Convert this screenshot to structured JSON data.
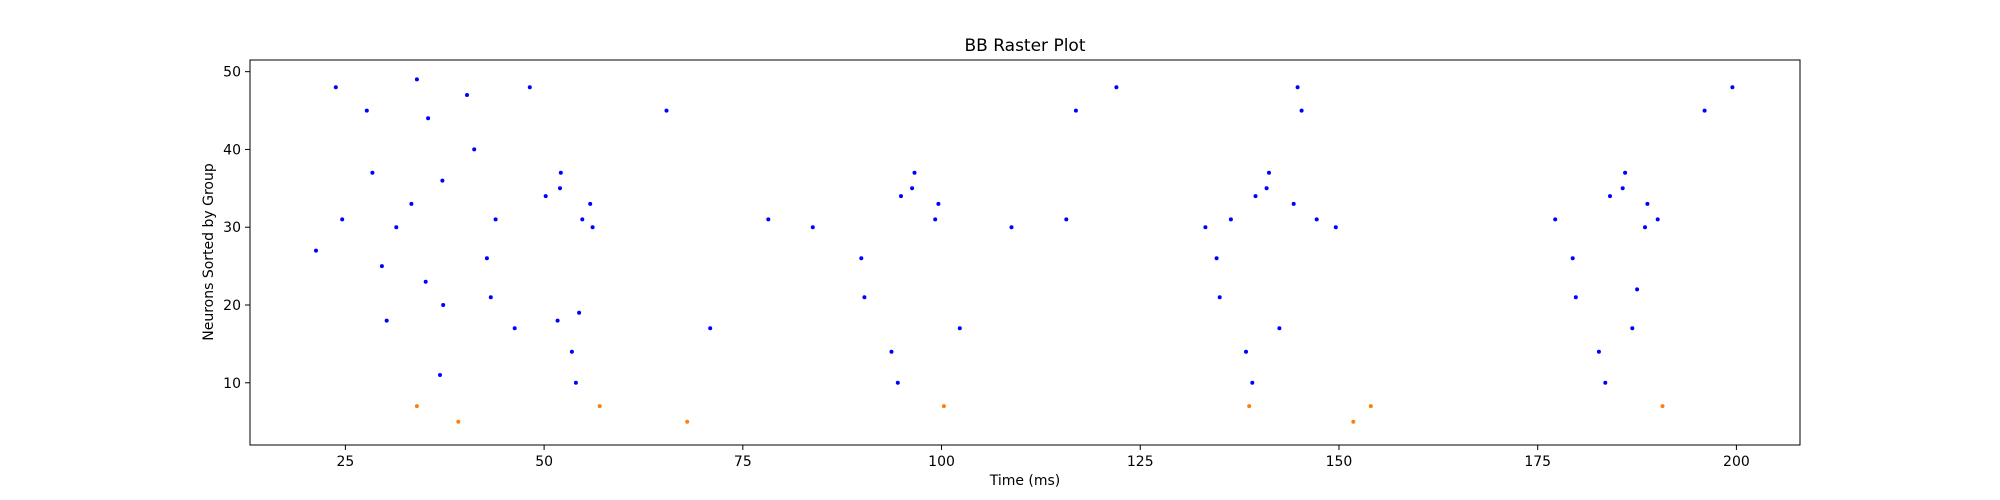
{
  "chart_data": {
    "type": "scatter",
    "title": "BB Raster Plot",
    "xlabel": "Time (ms)",
    "ylabel": "Neurons Sorted by Group",
    "xlim": [
      13,
      208
    ],
    "ylim": [
      2,
      51.5
    ],
    "xticks": [
      25,
      50,
      75,
      100,
      125,
      150,
      175,
      200
    ],
    "yticks": [
      10,
      20,
      30,
      40,
      50
    ],
    "grid": false,
    "series": [
      {
        "color": "#0000ff",
        "points": [
          [
            21.3,
            27
          ],
          [
            23.8,
            48
          ],
          [
            24.6,
            31
          ],
          [
            27.7,
            45
          ],
          [
            28.4,
            37
          ],
          [
            29.6,
            25
          ],
          [
            30.2,
            18
          ],
          [
            31.4,
            30
          ],
          [
            33.3,
            33
          ],
          [
            34.0,
            49
          ],
          [
            35.1,
            23
          ],
          [
            35.4,
            44
          ],
          [
            36.9,
            11
          ],
          [
            37.2,
            36
          ],
          [
            37.3,
            20
          ],
          [
            40.3,
            47
          ],
          [
            41.2,
            40
          ],
          [
            42.8,
            26
          ],
          [
            43.3,
            21
          ],
          [
            43.9,
            31
          ],
          [
            46.3,
            17
          ],
          [
            48.2,
            48
          ],
          [
            50.2,
            34
          ],
          [
            51.7,
            18
          ],
          [
            52.0,
            35
          ],
          [
            52.1,
            37
          ],
          [
            53.5,
            14
          ],
          [
            54.0,
            10
          ],
          [
            54.4,
            19
          ],
          [
            54.8,
            31
          ],
          [
            55.8,
            33
          ],
          [
            56.1,
            30
          ],
          [
            65.4,
            45
          ],
          [
            70.9,
            17
          ],
          [
            78.2,
            31
          ],
          [
            83.8,
            30
          ],
          [
            89.9,
            26
          ],
          [
            90.3,
            21
          ],
          [
            93.7,
            14
          ],
          [
            94.5,
            10
          ],
          [
            94.9,
            34
          ],
          [
            96.3,
            35
          ],
          [
            96.6,
            37
          ],
          [
            99.2,
            31
          ],
          [
            99.6,
            33
          ],
          [
            102.3,
            17
          ],
          [
            108.8,
            30
          ],
          [
            115.7,
            31
          ],
          [
            116.9,
            45
          ],
          [
            122.0,
            48
          ],
          [
            133.2,
            30
          ],
          [
            134.6,
            26
          ],
          [
            135.0,
            21
          ],
          [
            136.4,
            31
          ],
          [
            138.3,
            14
          ],
          [
            139.1,
            10
          ],
          [
            139.5,
            34
          ],
          [
            140.9,
            35
          ],
          [
            141.2,
            37
          ],
          [
            142.5,
            17
          ],
          [
            144.3,
            33
          ],
          [
            144.8,
            48
          ],
          [
            145.3,
            45
          ],
          [
            147.2,
            31
          ],
          [
            149.6,
            30
          ],
          [
            177.2,
            31
          ],
          [
            179.4,
            26
          ],
          [
            179.8,
            21
          ],
          [
            182.7,
            14
          ],
          [
            183.5,
            10
          ],
          [
            184.1,
            34
          ],
          [
            185.7,
            35
          ],
          [
            186.0,
            37
          ],
          [
            186.9,
            17
          ],
          [
            187.5,
            22
          ],
          [
            188.5,
            30
          ],
          [
            188.8,
            33
          ],
          [
            190.1,
            31
          ],
          [
            196.0,
            45
          ],
          [
            199.5,
            48
          ]
        ]
      },
      {
        "color": "#ff7f0e",
        "points": [
          [
            34.0,
            7
          ],
          [
            39.2,
            5
          ],
          [
            57.0,
            7
          ],
          [
            68.0,
            5
          ],
          [
            100.3,
            7
          ],
          [
            138.7,
            7
          ],
          [
            151.8,
            5
          ],
          [
            154.0,
            7
          ],
          [
            190.7,
            7
          ]
        ]
      }
    ]
  }
}
